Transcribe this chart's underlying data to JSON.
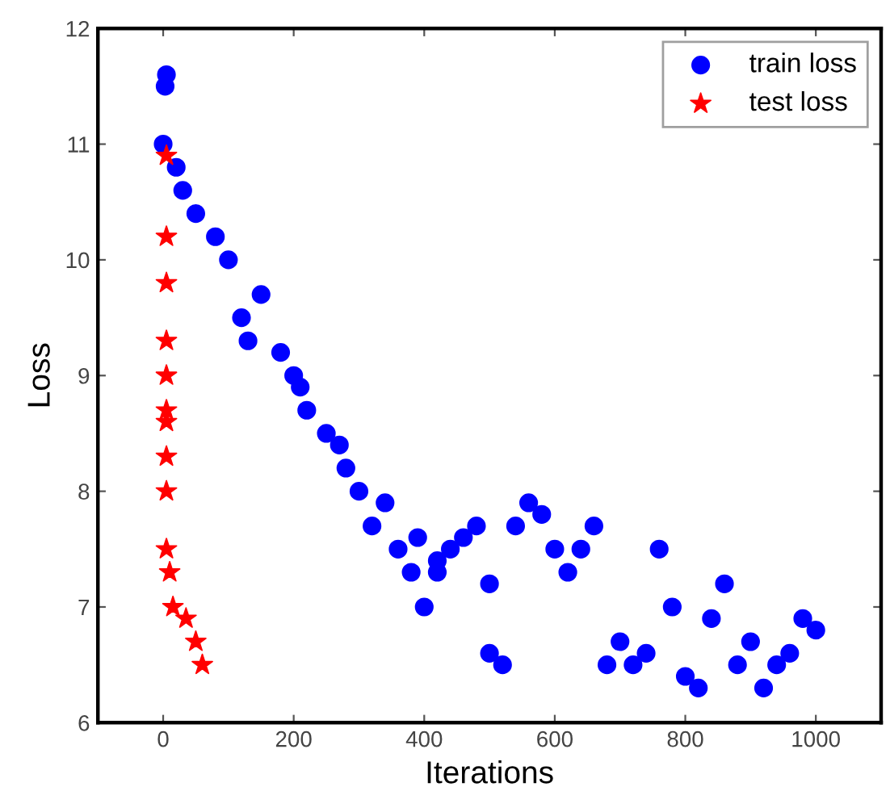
{
  "chart_data": {
    "type": "scatter",
    "xlabel": "Iterations",
    "ylabel": "Loss",
    "xlim": [
      -100,
      1100
    ],
    "xticks": [
      0,
      200,
      400,
      600,
      800,
      1000
    ],
    "ylim": [
      6,
      12
    ],
    "yticks": [
      6,
      7,
      8,
      9,
      10,
      11,
      12
    ],
    "grid": false,
    "legend": "top right",
    "series": [
      {
        "name": "train loss",
        "color": "#0000ff",
        "marker": "circle",
        "x": [
          5,
          3,
          0,
          20,
          30,
          50,
          80,
          100,
          120,
          150,
          130,
          180,
          200,
          210,
          220,
          250,
          270,
          280,
          300,
          320,
          340,
          360,
          380,
          390,
          400,
          420,
          420,
          440,
          460,
          480,
          500,
          500,
          520,
          540,
          560,
          580,
          600,
          620,
          640,
          660,
          680,
          700,
          720,
          740,
          760,
          780,
          800,
          820,
          840,
          860,
          880,
          900,
          920,
          940,
          960,
          980,
          1000
        ],
        "values": [
          11.6,
          11.5,
          11.0,
          10.8,
          10.6,
          10.4,
          10.2,
          10.0,
          9.5,
          9.7,
          9.3,
          9.2,
          9.0,
          8.9,
          8.7,
          8.5,
          8.4,
          8.2,
          8.0,
          7.7,
          7.9,
          7.5,
          7.3,
          7.6,
          7.0,
          7.4,
          7.3,
          7.5,
          7.6,
          7.7,
          7.2,
          6.6,
          6.5,
          7.7,
          7.9,
          7.8,
          7.5,
          7.3,
          7.5,
          7.7,
          6.5,
          6.7,
          6.5,
          6.6,
          7.5,
          7.0,
          6.4,
          6.3,
          6.9,
          7.2,
          6.5,
          6.7,
          6.3,
          6.5,
          6.6,
          6.9,
          6.8
        ]
      },
      {
        "name": "test loss",
        "color": "#ff0000",
        "marker": "star",
        "x": [
          5,
          5,
          5,
          5,
          5,
          5,
          5,
          5,
          5,
          5,
          10,
          15,
          35,
          50,
          60
        ],
        "values": [
          10.9,
          10.2,
          9.8,
          9.3,
          9.0,
          8.7,
          8.6,
          8.3,
          8.0,
          7.5,
          7.3,
          7.0,
          6.9,
          6.7,
          6.5
        ]
      }
    ]
  }
}
